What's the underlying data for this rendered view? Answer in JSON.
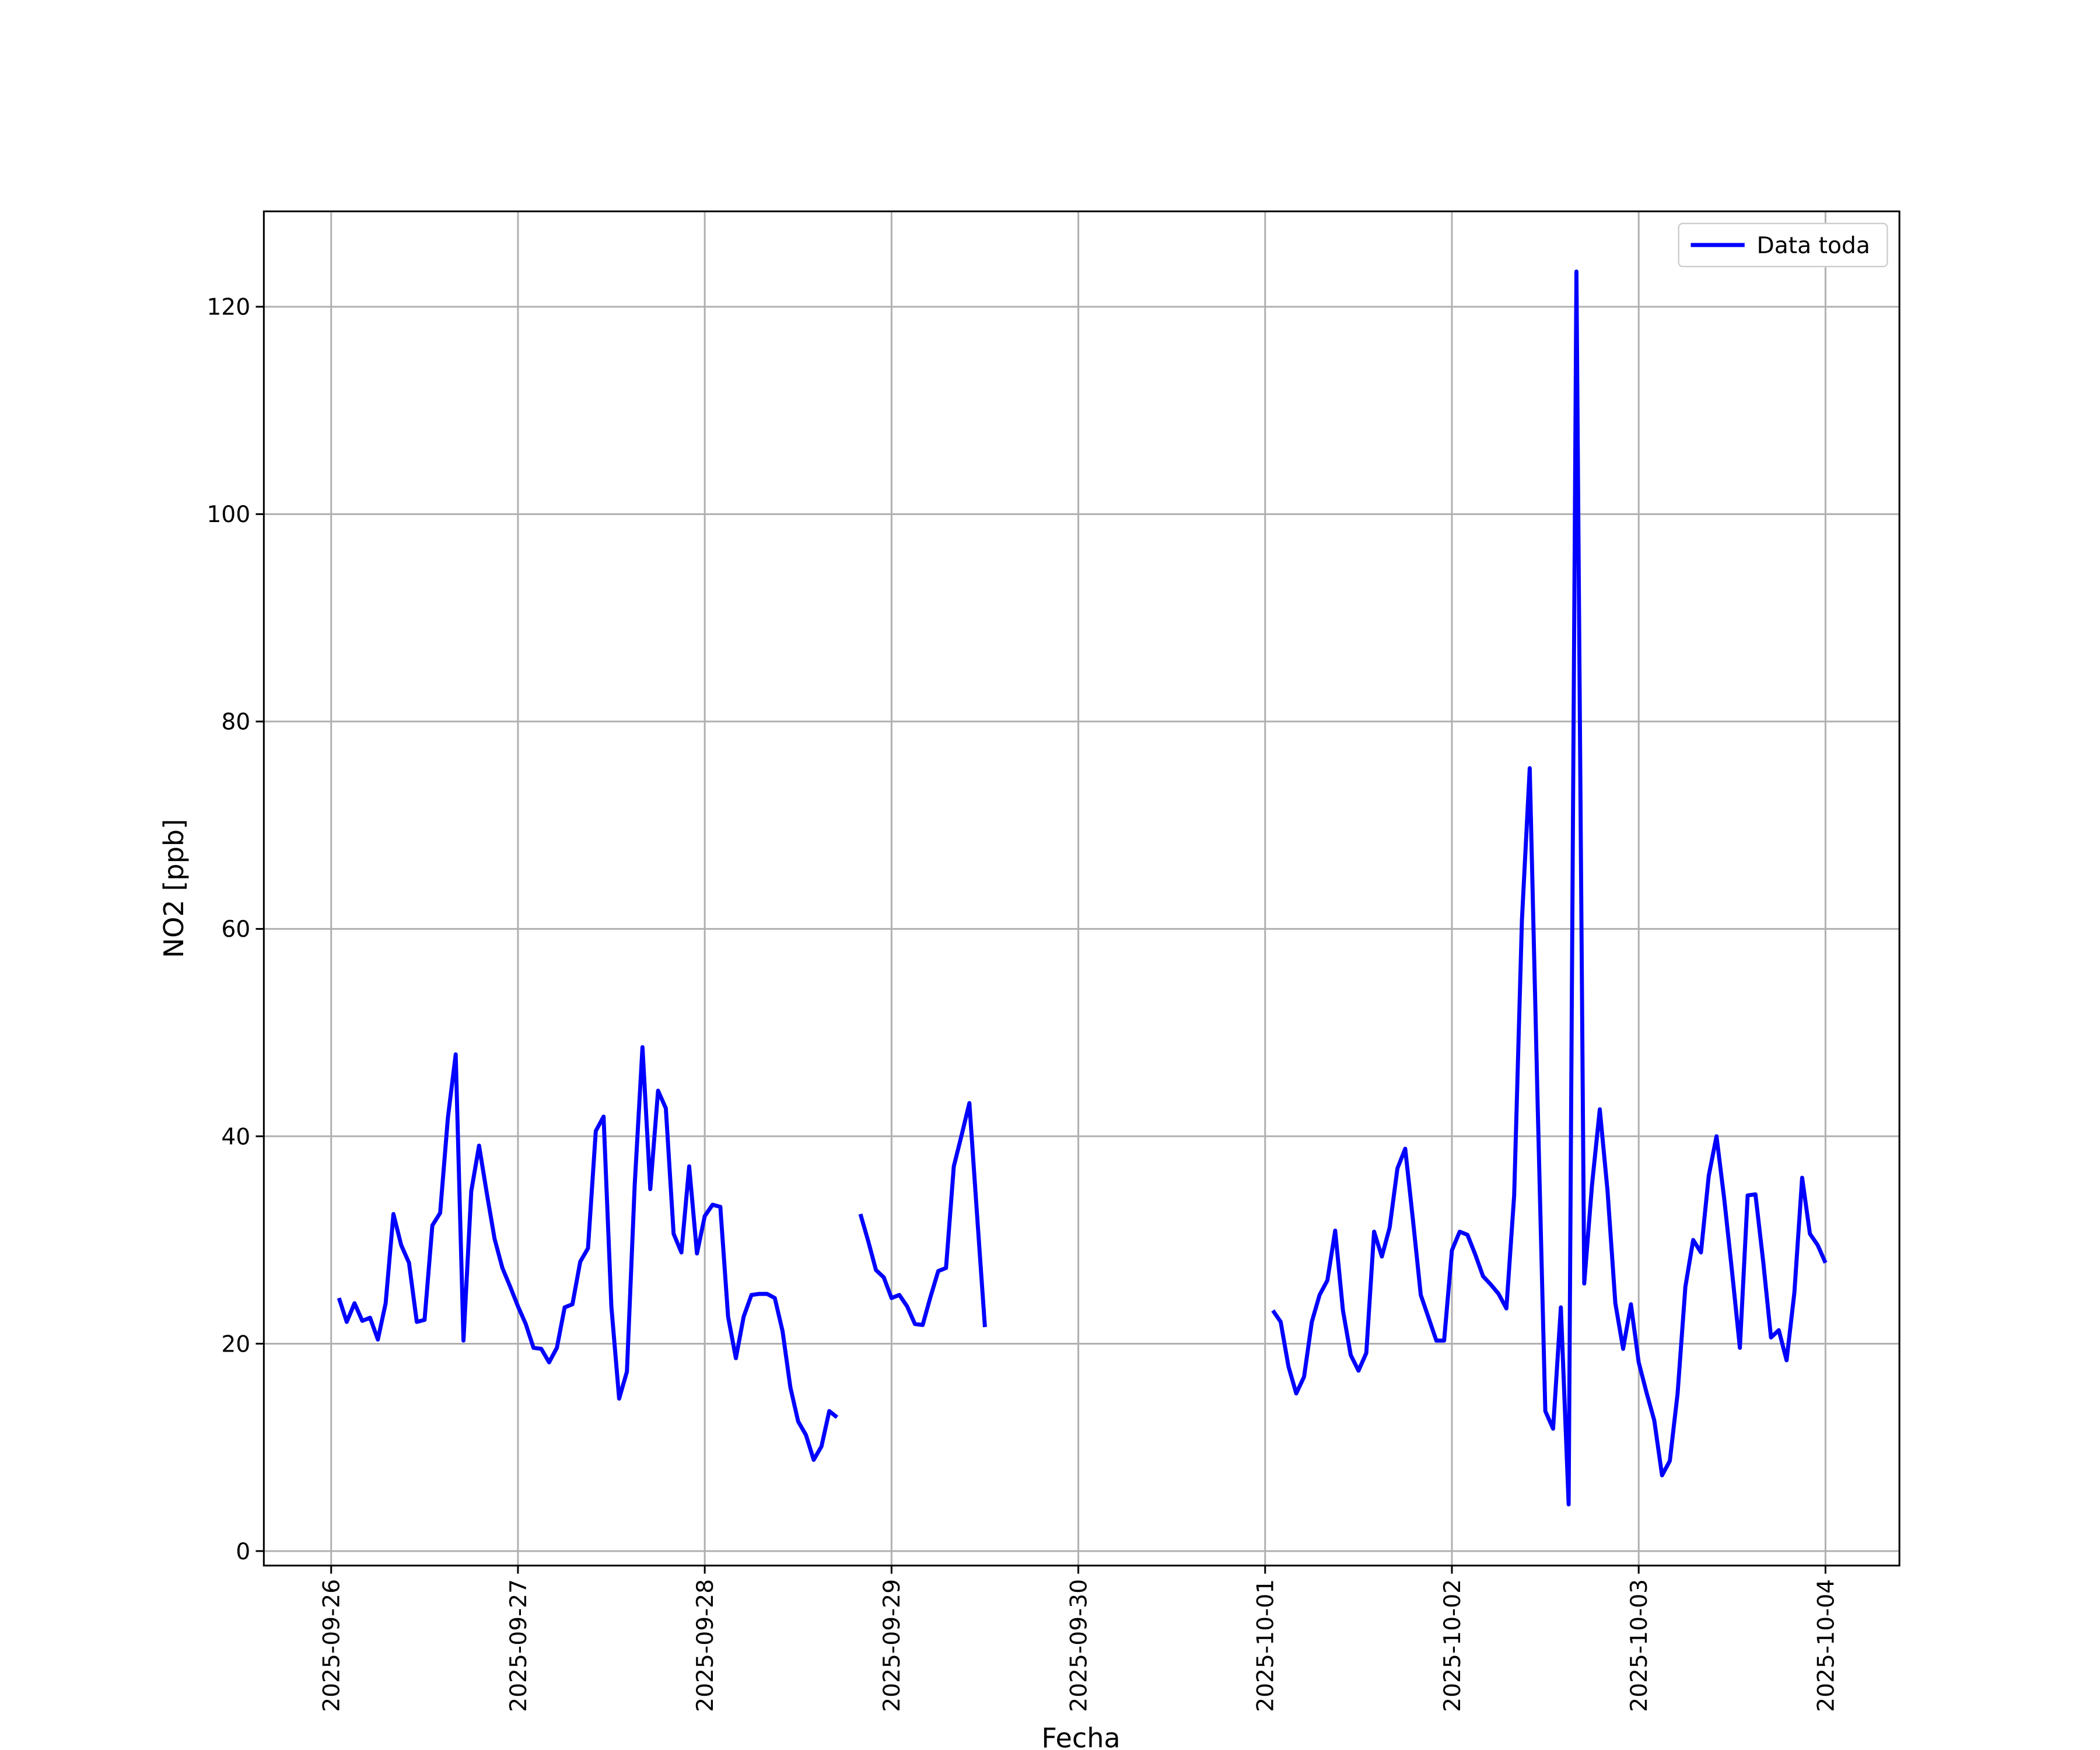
{
  "chart_data": {
    "type": "line",
    "xlabel": "Fecha",
    "ylabel": "NO2 [ppb]",
    "x": [
      "2025-09-26 01:00",
      "2025-09-26 02:00",
      "2025-09-26 03:00",
      "2025-09-26 04:00",
      "2025-09-26 05:00",
      "2025-09-26 06:00",
      "2025-09-26 07:00",
      "2025-09-26 08:00",
      "2025-09-26 09:00",
      "2025-09-26 10:00",
      "2025-09-26 11:00",
      "2025-09-26 12:00",
      "2025-09-26 13:00",
      "2025-09-26 14:00",
      "2025-09-26 15:00",
      "2025-09-26 16:00",
      "2025-09-26 17:00",
      "2025-09-26 18:00",
      "2025-09-26 19:00",
      "2025-09-26 20:00",
      "2025-09-26 21:00",
      "2025-09-26 22:00",
      "2025-09-26 23:00",
      "2025-09-27 00:00",
      "2025-09-27 01:00",
      "2025-09-27 02:00",
      "2025-09-27 03:00",
      "2025-09-27 04:00",
      "2025-09-27 05:00",
      "2025-09-27 06:00",
      "2025-09-27 07:00",
      "2025-09-27 08:00",
      "2025-09-27 09:00",
      "2025-09-27 10:00",
      "2025-09-27 11:00",
      "2025-09-27 12:00",
      "2025-09-27 13:00",
      "2025-09-27 14:00",
      "2025-09-27 15:00",
      "2025-09-27 16:00",
      "2025-09-27 17:00",
      "2025-09-27 18:00",
      "2025-09-27 19:00",
      "2025-09-27 20:00",
      "2025-09-27 21:00",
      "2025-09-27 22:00",
      "2025-09-27 23:00",
      "2025-09-28 00:00",
      "2025-09-28 01:00",
      "2025-09-28 02:00",
      "2025-09-28 03:00",
      "2025-09-28 04:00",
      "2025-09-28 05:00",
      "2025-09-28 06:00",
      "2025-09-28 07:00",
      "2025-09-28 08:00",
      "2025-09-28 09:00",
      "2025-09-28 10:00",
      "2025-09-28 11:00",
      "2025-09-28 12:00",
      "2025-09-28 13:00",
      "2025-09-28 14:00",
      "2025-09-28 15:00",
      "2025-09-28 16:00",
      "2025-09-28 17:00",
      "2025-09-28 18:00",
      "2025-09-28 20:00",
      "2025-09-28 21:00",
      "2025-09-28 22:00",
      "2025-09-28 23:00",
      "2025-09-29 00:00",
      "2025-09-29 01:00",
      "2025-09-29 02:00",
      "2025-09-29 03:00",
      "2025-09-29 04:00",
      "2025-09-29 05:00",
      "2025-09-29 06:00",
      "2025-09-29 07:00",
      "2025-09-29 08:00",
      "2025-09-29 09:00",
      "2025-09-29 10:00",
      "2025-09-29 11:00",
      "2025-09-29 12:00",
      "2025-09-29 13:00",
      "2025-10-01 01:00",
      "2025-10-01 02:00",
      "2025-10-01 03:00",
      "2025-10-01 04:00",
      "2025-10-01 05:00",
      "2025-10-01 06:00",
      "2025-10-01 07:00",
      "2025-10-01 08:00",
      "2025-10-01 09:00",
      "2025-10-01 10:00",
      "2025-10-01 11:00",
      "2025-10-01 12:00",
      "2025-10-01 13:00",
      "2025-10-01 14:00",
      "2025-10-01 15:00",
      "2025-10-01 16:00",
      "2025-10-01 17:00",
      "2025-10-01 18:00",
      "2025-10-01 19:00",
      "2025-10-01 20:00",
      "2025-10-01 21:00",
      "2025-10-01 22:00",
      "2025-10-01 23:00",
      "2025-10-02 00:00",
      "2025-10-02 01:00",
      "2025-10-02 02:00",
      "2025-10-02 03:00",
      "2025-10-02 04:00",
      "2025-10-02 05:00",
      "2025-10-02 06:00",
      "2025-10-02 07:00",
      "2025-10-02 08:00",
      "2025-10-02 09:00",
      "2025-10-02 10:00",
      "2025-10-02 11:00",
      "2025-10-02 12:00",
      "2025-10-02 13:00",
      "2025-10-02 14:00",
      "2025-10-02 15:00",
      "2025-10-02 16:00",
      "2025-10-02 17:00",
      "2025-10-02 18:00",
      "2025-10-02 19:00",
      "2025-10-02 20:00",
      "2025-10-02 21:00",
      "2025-10-02 22:00",
      "2025-10-02 23:00",
      "2025-10-03 00:00",
      "2025-10-03 01:00",
      "2025-10-03 02:00",
      "2025-10-03 03:00",
      "2025-10-03 04:00",
      "2025-10-03 05:00",
      "2025-10-03 06:00",
      "2025-10-03 07:00",
      "2025-10-03 08:00",
      "2025-10-03 09:00",
      "2025-10-03 10:00",
      "2025-10-03 11:00",
      "2025-10-03 12:00",
      "2025-10-03 13:00",
      "2025-10-03 14:00",
      "2025-10-03 15:00",
      "2025-10-03 16:00",
      "2025-10-03 17:00",
      "2025-10-03 18:00",
      "2025-10-03 19:00",
      "2025-10-03 20:00",
      "2025-10-03 21:00",
      "2025-10-03 22:00",
      "2025-10-03 23:00",
      "2025-10-04 00:00"
    ],
    "series": [
      {
        "name": "Data toda",
        "color": "#0000ff",
        "values": [
          24.4,
          22.1,
          23.9,
          22.2,
          22.5,
          20.4,
          23.9,
          32.5,
          29.5,
          27.8,
          22.1,
          22.3,
          31.4,
          32.6,
          41.8,
          47.9,
          20.3,
          34.7,
          39.1,
          34.5,
          30.1,
          27.3,
          25.5,
          23.6,
          21.9,
          19.6,
          19.5,
          18.2,
          19.6,
          23.5,
          23.8,
          27.9,
          29.2,
          40.5,
          41.9,
          23.6,
          14.7,
          17.3,
          35.3,
          48.6,
          34.9,
          44.4,
          42.7,
          30.6,
          28.8,
          37.1,
          28.7,
          32.3,
          33.4,
          33.2,
          22.6,
          18.6,
          22.6,
          24.7,
          24.8,
          24.8,
          24.4,
          21.2,
          15.8,
          12.5,
          11.2,
          8.8,
          10.1,
          13.5,
          12.9,
          null,
          32.5,
          29.9,
          27.1,
          26.4,
          24.4,
          24.7,
          23.6,
          21.9,
          21.8,
          24.5,
          27.0,
          27.3,
          37.1,
          40.1,
          43.2,
          32.3,
          21.6,
          null,
          23.2,
          22.1,
          17.8,
          15.2,
          16.8,
          22.1,
          24.7,
          26.1,
          30.9,
          23.2,
          18.9,
          17.4,
          19.1,
          30.8,
          28.4,
          31.2,
          36.9,
          38.8,
          31.9,
          24.7,
          22.5,
          20.3,
          20.3,
          29.0,
          30.8,
          30.5,
          28.6,
          26.5,
          25.7,
          24.8,
          23.4,
          34.3,
          60.9,
          75.5,
          43.6,
          13.5,
          11.8,
          23.5,
          4.5,
          123.4,
          25.8,
          35.3,
          42.6,
          34.7,
          23.9,
          19.5,
          23.8,
          18.2,
          15.3,
          12.6,
          7.3,
          8.7,
          15.2,
          25.5,
          30.0,
          28.8,
          36.2,
          40.0,
          33.9,
          26.9,
          19.6,
          34.3,
          34.4,
          27.9,
          20.6,
          21.3,
          18.4,
          24.9,
          36.0,
          30.6,
          29.5,
          27.8
        ]
      }
    ],
    "xlim": [
      "2025-09-25 15:21",
      "2025-10-04 09:30"
    ],
    "xticks": [
      "2025-09-26",
      "2025-09-27",
      "2025-09-28",
      "2025-09-29",
      "2025-09-30",
      "2025-10-01",
      "2025-10-02",
      "2025-10-03",
      "2025-10-04"
    ],
    "ylim": [
      -1.4,
      129.2
    ],
    "yticks": [
      0,
      20,
      40,
      60,
      80,
      100,
      120
    ],
    "grid": true,
    "legend": "upper right"
  }
}
